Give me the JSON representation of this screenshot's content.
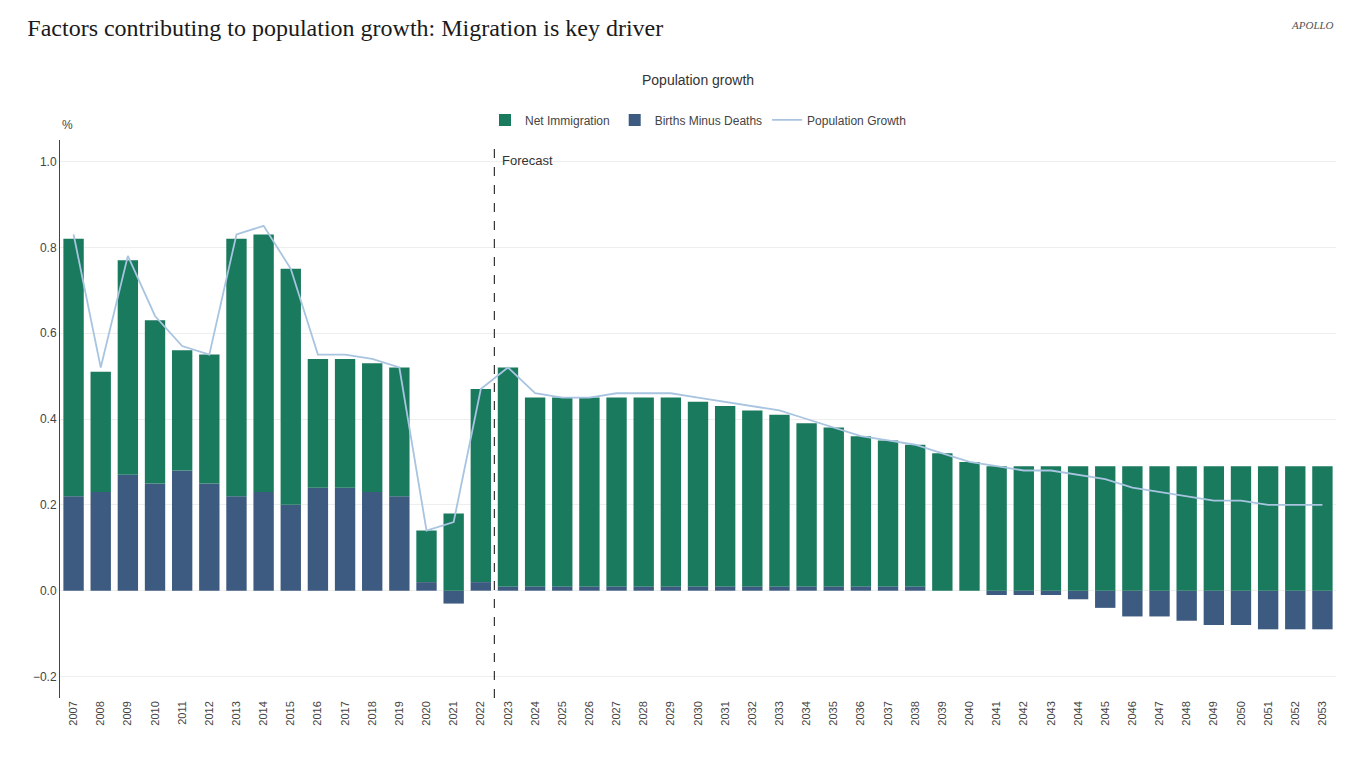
{
  "chart_data": {
    "type": "bar",
    "title": "Factors contributing to population growth: Migration is key driver",
    "subtitle": "Population growth",
    "watermark": "APOLLO",
    "ylabel": "%",
    "categories": [
      "2007",
      "2008",
      "2009",
      "2010",
      "2011",
      "2012",
      "2013",
      "2014",
      "2015",
      "2016",
      "2017",
      "2018",
      "2019",
      "2020",
      "2021",
      "2022",
      "2023",
      "2024",
      "2025",
      "2026",
      "2027",
      "2028",
      "2029",
      "2030",
      "2031",
      "2032",
      "2033",
      "2034",
      "2035",
      "2036",
      "2037",
      "2038",
      "2039",
      "2040",
      "2041",
      "2042",
      "2043",
      "2044",
      "2045",
      "2046",
      "2047",
      "2048",
      "2049",
      "2050",
      "2051",
      "2052",
      "2053"
    ],
    "series": [
      {
        "name": "Net Immigration",
        "type": "bar",
        "color": "#1a7a5e",
        "values": [
          0.6,
          0.28,
          0.5,
          0.38,
          0.28,
          0.3,
          0.6,
          0.6,
          0.55,
          0.3,
          0.3,
          0.3,
          0.3,
          0.12,
          0.18,
          0.45,
          0.51,
          0.44,
          0.44,
          0.44,
          0.44,
          0.44,
          0.44,
          0.43,
          0.42,
          0.41,
          0.4,
          0.38,
          0.37,
          0.35,
          0.34,
          0.33,
          0.32,
          0.3,
          0.29,
          0.29,
          0.29,
          0.29,
          0.29,
          0.29,
          0.29,
          0.29,
          0.29,
          0.29,
          0.29,
          0.29,
          0.29
        ]
      },
      {
        "name": "Births Minus Deaths",
        "type": "bar",
        "color": "#3d5a80",
        "values": [
          0.22,
          0.23,
          0.27,
          0.25,
          0.28,
          0.25,
          0.22,
          0.23,
          0.2,
          0.24,
          0.24,
          0.23,
          0.22,
          0.02,
          -0.03,
          0.02,
          0.01,
          0.01,
          0.01,
          0.01,
          0.01,
          0.01,
          0.01,
          0.01,
          0.01,
          0.01,
          0.01,
          0.01,
          0.01,
          0.01,
          0.01,
          0.01,
          0.0,
          0.0,
          -0.01,
          -0.01,
          -0.01,
          -0.02,
          -0.04,
          -0.06,
          -0.06,
          -0.07,
          -0.08,
          -0.08,
          -0.09,
          -0.09,
          -0.09
        ]
      },
      {
        "name": "Population Growth",
        "type": "line",
        "color": "#a8c4e0",
        "values": [
          0.83,
          0.52,
          0.78,
          0.64,
          0.57,
          0.55,
          0.83,
          0.85,
          0.75,
          0.55,
          0.55,
          0.54,
          0.52,
          0.14,
          0.16,
          0.47,
          0.52,
          0.46,
          0.45,
          0.45,
          0.46,
          0.46,
          0.46,
          0.45,
          0.44,
          0.43,
          0.42,
          0.4,
          0.38,
          0.36,
          0.35,
          0.34,
          0.32,
          0.3,
          0.29,
          0.28,
          0.28,
          0.27,
          0.26,
          0.24,
          0.23,
          0.22,
          0.21,
          0.21,
          0.2,
          0.2,
          0.2
        ]
      }
    ],
    "stacked": true,
    "ylim": [
      -0.25,
      1.05
    ],
    "yticks": [
      {
        "value": -0.2,
        "label": "−0.2"
      },
      {
        "value": 0,
        "label": "0.0"
      },
      0.2,
      0.4,
      0.6,
      0.8,
      {
        "value": 1,
        "label": "1.0"
      }
    ],
    "grid": true,
    "legend": "top",
    "annotations": [
      {
        "text": "Forecast",
        "x": "2022",
        "line_style": "dashed"
      }
    ]
  }
}
